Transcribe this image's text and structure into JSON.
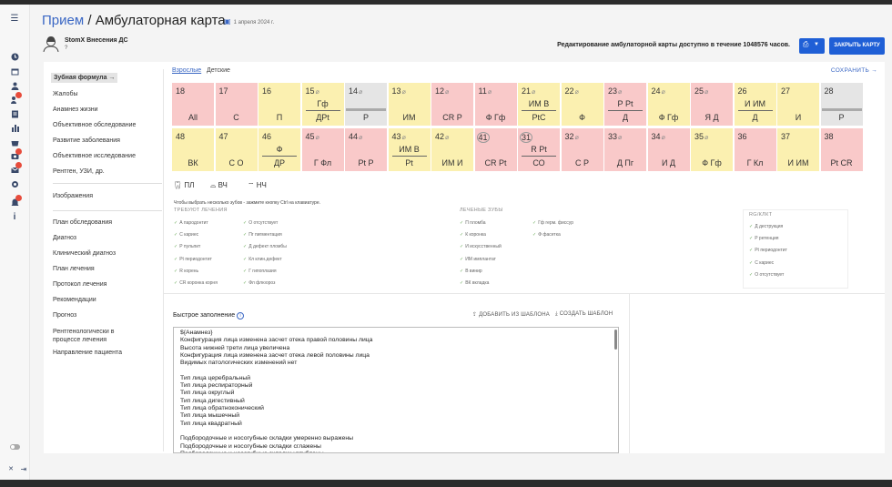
{
  "header": {
    "crumb_link": "Прием",
    "crumb_sep": " / ",
    "crumb_current": "Амбулаторная карта",
    "date": "1 апреля 2024 г."
  },
  "patient": {
    "name": "StomX Внесения ДС",
    "number": "?"
  },
  "notice": "Редактирование амбулаторной карты доступно в течение 1048576 часов.",
  "buttons": {
    "close": "ЗАКРЫТЬ КАРТУ",
    "save": "СОХРАНИТЬ →"
  },
  "nav": {
    "items": [
      "Зубная формула →",
      "Жалобы",
      "Анамнез жизни",
      "Объективное обследование",
      "Развитие заболевания",
      "Объективное исследование",
      "Рентген, УЗИ, др.",
      "Изображения",
      "План обследования",
      "Диагноз",
      "Клинический диагноз",
      "План лечения",
      "Протокол лечения",
      "Рекомендации",
      "Прогноз",
      "Рентгенологически в процессе лечения",
      "Направление пациента"
    ]
  },
  "tabs": {
    "adult": "Взрослые",
    "child": "Детские"
  },
  "upper_teeth": [
    {
      "num": "18",
      "top": "",
      "bot": "All",
      "color": "#f9c9c9"
    },
    {
      "num": "17",
      "top": "",
      "bot": "С",
      "color": "#f9c9c9"
    },
    {
      "num": "16",
      "top": "",
      "bot": "П",
      "color": "#fbf0b0"
    },
    {
      "num": "15",
      "top": "Гф",
      "bot": "ДPt",
      "color": "#fbf0b0",
      "pin": true
    },
    {
      "num": "14",
      "top": "",
      "bot": "Р",
      "color": "#e5e5e5",
      "pin": true
    },
    {
      "num": "13",
      "top": "",
      "bot": "ИМ",
      "color": "#fbf0b0",
      "pin": true
    },
    {
      "num": "12",
      "top": "",
      "bot": "CR Р",
      "color": "#f9c9c9",
      "pin": true
    },
    {
      "num": "11",
      "top": "",
      "bot": "Ф Гф",
      "color": "#f9c9c9",
      "pin": true
    },
    {
      "num": "21",
      "top": "ИМ В",
      "bot": "PtС",
      "color": "#fbf0b0",
      "pin": true
    },
    {
      "num": "22",
      "top": "",
      "bot": "Ф",
      "color": "#fbf0b0",
      "pin": true
    },
    {
      "num": "23",
      "top": "Р Pt",
      "bot": "Д",
      "color": "#f9c9c9",
      "pin": true
    },
    {
      "num": "24",
      "top": "",
      "bot": "Ф Гф",
      "color": "#fbf0b0",
      "pin": true
    },
    {
      "num": "25",
      "top": "",
      "bot": "Я Д",
      "color": "#f9c9c9",
      "pin": true
    },
    {
      "num": "26",
      "top": "И ИМ",
      "bot": "Д",
      "color": "#fbf0b0"
    },
    {
      "num": "27",
      "top": "",
      "bot": "И",
      "color": "#fbf0b0"
    },
    {
      "num": "28",
      "top": "",
      "bot": "Р",
      "color": "#e5e5e5"
    }
  ],
  "lower_teeth": [
    {
      "num": "48",
      "top": "",
      "bot": "ВК",
      "color": "#fbf0b0"
    },
    {
      "num": "47",
      "top": "",
      "bot": "С О",
      "color": "#fbf0b0"
    },
    {
      "num": "46",
      "top": "Ф",
      "bot": "ДР",
      "color": "#fbf0b0"
    },
    {
      "num": "45",
      "top": "",
      "bot": "Г Фл",
      "color": "#f9c9c9",
      "pin": true
    },
    {
      "num": "44",
      "top": "",
      "bot": "Pt Р",
      "color": "#f9c9c9",
      "pin": true
    },
    {
      "num": "43",
      "top": "ИМ В",
      "bot": "Pt",
      "color": "#fbf0b0",
      "pin": true
    },
    {
      "num": "42",
      "top": "",
      "bot": "ИМ И",
      "color": "#fbf0b0",
      "pin": true
    },
    {
      "num": "41",
      "top": "",
      "bot": "CR Pt",
      "color": "#f9c9c9",
      "circle": true
    },
    {
      "num": "31",
      "top": "R Pt",
      "bot": "СО",
      "color": "#f9c9c9",
      "circle": true
    },
    {
      "num": "32",
      "top": "",
      "bot": "С Р",
      "color": "#f9c9c9",
      "pin": true
    },
    {
      "num": "33",
      "top": "",
      "bot": "Д Пг",
      "color": "#f9c9c9",
      "pin": true
    },
    {
      "num": "34",
      "top": "",
      "bot": "И Д",
      "color": "#f9c9c9",
      "pin": true
    },
    {
      "num": "35",
      "top": "",
      "bot": "Ф Гф",
      "color": "#fbf0b0",
      "pin": true
    },
    {
      "num": "36",
      "top": "",
      "bot": "Г Кл",
      "color": "#f9c9c9"
    },
    {
      "num": "37",
      "top": "",
      "bot": "И ИМ",
      "color": "#fbf0b0"
    },
    {
      "num": "38",
      "top": "",
      "bot": "Pt CR",
      "color": "#f9c9c9"
    }
  ],
  "tooth_types": [
    "ПЛ",
    "ВЧ",
    "НЧ"
  ],
  "hint": "Чтобы выбрать несколько зубов - зажмите кнопку Ctrl на клавиатуре.",
  "legend": {
    "need_title": "ТРЕБУЮТ ЛЕЧЕНИЯ",
    "need_col1": [
      "А пародонтит",
      "С кариес",
      "Р пульпит",
      "Pt периодонтит",
      "R корень",
      "CR коронка корня"
    ],
    "need_col2": [
      "О отсутствует",
      "Пг пигментация",
      "Д дефект пломбы",
      "Кл клин.дефект",
      "Г гипоплазия",
      "Фл флюороз"
    ],
    "treated_title": "ЛЕЧЕНЫЕ ЗУБЫ",
    "treated_col1": [
      "П пломба",
      "К коронка",
      "И искусственный",
      "ИМ имплантат",
      "В винир",
      "ВК вкладка"
    ],
    "treated_col2": [
      "Гф герм. фиссур",
      "Ф фасетка"
    ],
    "rg_title": "RG/КЛКТ",
    "rg_items": [
      "Д деструкция",
      "Р ретенция",
      "Pt периодонтит",
      "С кариес",
      "О отсутствует"
    ]
  },
  "quick": {
    "title": "Быстрое заполнение",
    "add_template": "ДОБАВИТЬ ИЗ ШАБЛОНА",
    "create_template": "СОЗДАТЬ ШАБЛОН",
    "lines": [
      "${Анамнез}",
      "Конфигурация лица изменена засчет отека правой половины лица",
      "Высота нижней трети лица увеличена",
      "Конфигурация лица изменена засчет отека левой половины лица",
      "Видимых патологических изменений нет",
      "",
      "Тип лица  церебральный",
      "Тип лица респираторный",
      "Тип лица округлый",
      "Тип лица дигестивный",
      "Тип лица обратноконический",
      "Тип лица мышечный",
      "Тип лица квадратный",
      "",
      "Подбородочные и носогубные складки умеренно выражены",
      "Подбородочные и носогубные складки сглажены",
      "Подбородочные и носогубные складки углублены"
    ]
  },
  "colors": {
    "accent": "#1f5fd6",
    "link": "#3a67c4",
    "treat_red": "#f9c9c9",
    "treat_yellow": "#fbf0b0",
    "gray": "#e5e5e5"
  }
}
